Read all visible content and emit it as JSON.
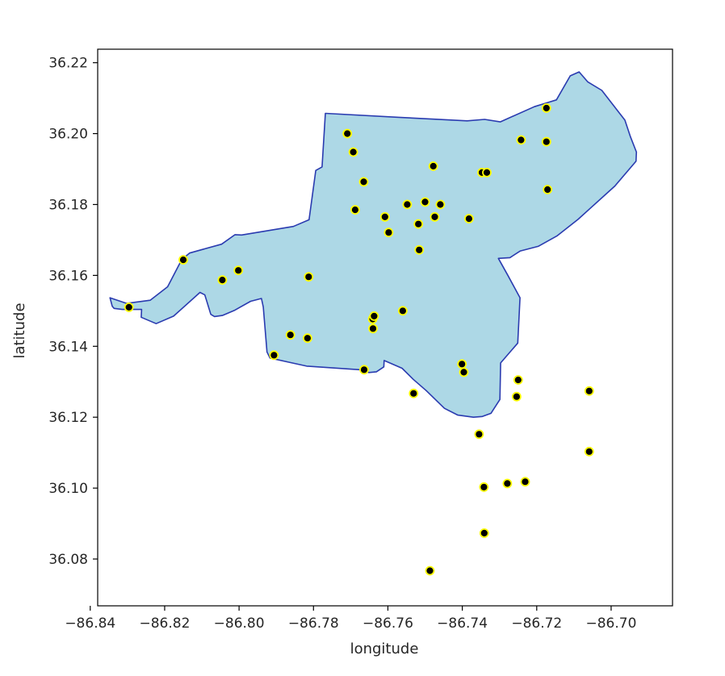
{
  "chart_data": {
    "type": "scatter",
    "title": "",
    "xlabel": "longitude",
    "ylabel": "latitude",
    "xlim": [
      -86.838,
      -86.6835
    ],
    "ylim": [
      36.0668,
      36.2238
    ],
    "x_ticks": [
      -86.84,
      -86.82,
      -86.8,
      -86.78,
      -86.76,
      -86.74,
      -86.72,
      -86.7
    ],
    "x_tick_labels": [
      "−86.84",
      "−86.82",
      "−86.80",
      "−86.78",
      "−86.76",
      "−86.74",
      "−86.72",
      "−86.70"
    ],
    "y_ticks": [
      36.08,
      36.1,
      36.12,
      36.14,
      36.16,
      36.18,
      36.2,
      36.22
    ],
    "y_tick_labels": [
      "36.08",
      "36.10",
      "36.12",
      "36.14",
      "36.16",
      "36.18",
      "36.20",
      "36.22"
    ],
    "grid": false,
    "legend": "none",
    "polygon": {
      "fill_color": "#add8e6",
      "edge_color": "#2a3bb0",
      "boundary": [
        [
          -86.8347,
          36.1537
        ],
        [
          -86.8302,
          36.1521
        ],
        [
          -86.8239,
          36.153
        ],
        [
          -86.8192,
          36.1568
        ],
        [
          -86.8154,
          36.1645
        ],
        [
          -86.8133,
          36.1663
        ],
        [
          -86.8099,
          36.1673
        ],
        [
          -86.8047,
          36.1688
        ],
        [
          -86.8011,
          36.1715
        ],
        [
          -86.7993,
          36.1714
        ],
        [
          -86.7854,
          36.1738
        ],
        [
          -86.7812,
          36.1757
        ],
        [
          -86.7794,
          36.1896
        ],
        [
          -86.7777,
          36.1906
        ],
        [
          -86.7768,
          36.2057
        ],
        [
          -86.7571,
          36.2046
        ],
        [
          -86.7387,
          36.2036
        ],
        [
          -86.734,
          36.204
        ],
        [
          -86.7298,
          36.2033
        ],
        [
          -86.7206,
          36.2076
        ],
        [
          -86.7147,
          36.2095
        ],
        [
          -86.711,
          36.2163
        ],
        [
          -86.7086,
          36.2174
        ],
        [
          -86.7063,
          36.2146
        ],
        [
          -86.7025,
          36.2122
        ],
        [
          -86.6963,
          36.2038
        ],
        [
          -86.6948,
          36.1991
        ],
        [
          -86.6932,
          36.1948
        ],
        [
          -86.6933,
          36.1922
        ],
        [
          -86.699,
          36.1852
        ],
        [
          -86.705,
          36.1795
        ],
        [
          -86.7089,
          36.1758
        ],
        [
          -86.7146,
          36.1711
        ],
        [
          -86.7196,
          36.1682
        ],
        [
          -86.7244,
          36.1669
        ],
        [
          -86.7272,
          36.165
        ],
        [
          -86.7303,
          36.1648
        ],
        [
          -86.7277,
          36.1599
        ],
        [
          -86.7245,
          36.1537
        ],
        [
          -86.7251,
          36.1409
        ],
        [
          -86.7297,
          36.1353
        ],
        [
          -86.7299,
          36.125
        ],
        [
          -86.7323,
          36.1211
        ],
        [
          -86.7346,
          36.1202
        ],
        [
          -86.737,
          36.12
        ],
        [
          -86.7412,
          36.1206
        ],
        [
          -86.7448,
          36.1225
        ],
        [
          -86.7497,
          36.1275
        ],
        [
          -86.7532,
          36.1307
        ],
        [
          -86.7562,
          36.1338
        ],
        [
          -86.761,
          36.136
        ],
        [
          -86.7611,
          36.1342
        ],
        [
          -86.7631,
          36.1328
        ],
        [
          -86.7651,
          36.1326
        ],
        [
          -86.7676,
          36.1334
        ],
        [
          -86.776,
          36.134
        ],
        [
          -86.7818,
          36.1344
        ],
        [
          -86.787,
          36.1356
        ],
        [
          -86.7917,
          36.1367
        ],
        [
          -86.7925,
          36.1384
        ],
        [
          -86.7935,
          36.1511
        ],
        [
          -86.794,
          36.1535
        ],
        [
          -86.7969,
          36.1527
        ],
        [
          -86.8013,
          36.1501
        ],
        [
          -86.8045,
          36.1487
        ],
        [
          -86.8066,
          36.1484
        ],
        [
          -86.8076,
          36.149
        ],
        [
          -86.8092,
          36.1545
        ],
        [
          -86.8105,
          36.1552
        ],
        [
          -86.8176,
          36.1485
        ],
        [
          -86.8223,
          36.1464
        ],
        [
          -86.8263,
          36.1482
        ],
        [
          -86.8262,
          36.1504
        ],
        [
          -86.8314,
          36.1504
        ],
        [
          -86.8336,
          36.1507
        ],
        [
          -86.8341,
          36.1513
        ],
        [
          -86.8347,
          36.1537
        ]
      ]
    },
    "points": {
      "marker_color": "#000000",
      "edge_color": "#ffff00",
      "x": [
        -86.8296,
        -86.815,
        -86.8045,
        -86.8002,
        -86.7906,
        -86.7862,
        -86.7816,
        -86.7813,
        -86.7709,
        -86.7693,
        -86.7688,
        -86.7665,
        -86.7664,
        -86.7641,
        -86.764,
        -86.7637,
        -86.7608,
        -86.7598,
        -86.756,
        -86.7548,
        -86.7518,
        -86.7516,
        -86.75,
        -86.7478,
        -86.7459,
        -86.7474,
        -86.7531,
        -86.7396,
        -86.7401,
        -86.7382,
        -86.7347,
        -86.7334,
        -86.7242,
        -86.7174,
        -86.7174,
        -86.7171,
        -86.725,
        -86.7254,
        -86.7355,
        -86.7342,
        -86.7341,
        -86.7279,
        -86.7231,
        -86.7059,
        -86.7059,
        -86.7487
      ],
      "y": [
        36.151,
        36.1644,
        36.1587,
        36.1614,
        36.1375,
        36.1432,
        36.1423,
        36.1596,
        36.2,
        36.1948,
        36.1785,
        36.1864,
        36.1334,
        36.1477,
        36.145,
        36.1485,
        36.1765,
        36.1721,
        36.15,
        36.18,
        36.1745,
        36.1672,
        36.1807,
        36.1908,
        36.18,
        36.1765,
        36.1267,
        36.1327,
        36.135,
        36.176,
        36.189,
        36.189,
        36.1982,
        36.2072,
        36.1977,
        36.1842,
        36.1305,
        36.1258,
        36.1152,
        36.1003,
        36.0873,
        36.1013,
        36.1018,
        36.1274,
        36.1103,
        36.0767
      ]
    }
  }
}
